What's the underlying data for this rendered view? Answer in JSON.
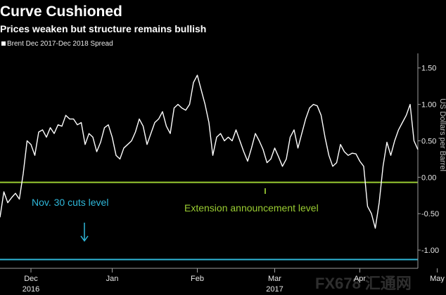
{
  "title": "Curve Cushioned",
  "subtitle": "Prices weaken but structure remains bullish",
  "watermark": "FX678 汇通网",
  "colors": {
    "background": "#000000",
    "series": "#ffffff",
    "cuts_level": "#2fb7d9",
    "extension_level": "#9acd32",
    "axis": "#9e9e9e"
  },
  "chart_data": {
    "type": "line",
    "legend": {
      "position": "top-left",
      "entries": [
        "Brent Dec 2017-Dec 2018 Spread"
      ]
    },
    "ylabel": "US Dollars per Barrel",
    "y_axis_side": "right",
    "ylim": [
      -1.25,
      1.7
    ],
    "yticks": [
      1.5,
      1.0,
      0.5,
      0.0,
      -0.5,
      -1.0
    ],
    "ytick_labels": [
      "1.50",
      "1.00",
      "0.50",
      "0.00",
      "-0.50",
      "-1.00"
    ],
    "xticks": [
      {
        "label": "Dec",
        "sublabel": "2016",
        "index": 8
      },
      {
        "label": "Jan",
        "sublabel": "",
        "index": 29
      },
      {
        "label": "Feb",
        "sublabel": "",
        "index": 51
      },
      {
        "label": "Mar",
        "sublabel": "2017",
        "index": 71
      },
      {
        "label": "Apr",
        "sublabel": "",
        "index": 93
      },
      {
        "label": "May",
        "sublabel": "",
        "index": 113
      }
    ],
    "series": [
      {
        "name": "Brent Dec 2017-Dec 2018 Spread",
        "values": [
          -0.55,
          -0.2,
          -0.35,
          -0.28,
          -0.22,
          -0.3,
          0.05,
          0.5,
          0.45,
          0.3,
          0.62,
          0.65,
          0.55,
          0.68,
          0.6,
          0.72,
          0.7,
          0.85,
          0.8,
          0.8,
          0.72,
          0.75,
          0.45,
          0.6,
          0.55,
          0.35,
          0.48,
          0.68,
          0.72,
          0.55,
          0.3,
          0.25,
          0.4,
          0.45,
          0.5,
          0.62,
          0.8,
          0.7,
          0.45,
          0.6,
          0.75,
          0.8,
          0.9,
          0.7,
          0.6,
          0.95,
          1.0,
          0.95,
          0.92,
          1.0,
          1.3,
          1.4,
          1.2,
          1.0,
          0.75,
          0.3,
          0.55,
          0.6,
          0.5,
          0.55,
          0.5,
          0.65,
          0.5,
          0.35,
          0.22,
          0.4,
          0.6,
          0.5,
          0.38,
          0.2,
          0.25,
          0.4,
          0.28,
          0.15,
          0.25,
          0.55,
          0.65,
          0.4,
          0.6,
          0.8,
          0.95,
          1.0,
          0.98,
          0.85,
          0.55,
          0.3,
          0.15,
          0.2,
          0.45,
          0.35,
          0.3,
          0.33,
          0.32,
          0.22,
          0.15,
          -0.4,
          -0.5,
          -0.7,
          -0.35,
          0.15,
          0.48,
          0.3,
          0.5,
          0.65,
          0.75,
          0.85,
          1.0,
          0.5,
          0.38
        ]
      }
    ],
    "reference_lines": [
      {
        "name": "Nov. 30 cuts level",
        "value": -1.13
      },
      {
        "name": "Extension announcement level",
        "value": -0.07
      }
    ],
    "annotations": [
      {
        "text": "Nov. 30 cuts level",
        "arrow": "down"
      },
      {
        "text": "Extension announcement level",
        "arrow": "up"
      }
    ],
    "grid": false
  }
}
